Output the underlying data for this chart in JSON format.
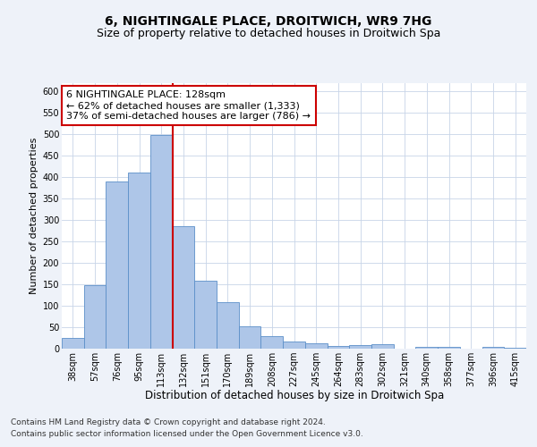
{
  "title": "6, NIGHTINGALE PLACE, DROITWICH, WR9 7HG",
  "subtitle": "Size of property relative to detached houses in Droitwich Spa",
  "xlabel": "Distribution of detached houses by size in Droitwich Spa",
  "ylabel": "Number of detached properties",
  "categories": [
    "38sqm",
    "57sqm",
    "76sqm",
    "95sqm",
    "113sqm",
    "132sqm",
    "151sqm",
    "170sqm",
    "189sqm",
    "208sqm",
    "227sqm",
    "245sqm",
    "264sqm",
    "283sqm",
    "302sqm",
    "321sqm",
    "340sqm",
    "358sqm",
    "377sqm",
    "396sqm",
    "415sqm"
  ],
  "values": [
    25,
    148,
    390,
    410,
    498,
    285,
    158,
    108,
    53,
    30,
    16,
    12,
    6,
    8,
    10,
    0,
    4,
    5,
    0,
    5,
    3
  ],
  "bar_color": "#aec6e8",
  "bar_edge_color": "#5b8fc9",
  "vline_color": "#cc0000",
  "ylim": [
    0,
    620
  ],
  "yticks": [
    0,
    50,
    100,
    150,
    200,
    250,
    300,
    350,
    400,
    450,
    500,
    550,
    600
  ],
  "annotation_text": "6 NIGHTINGALE PLACE: 128sqm\n← 62% of detached houses are smaller (1,333)\n37% of semi-detached houses are larger (786) →",
  "annotation_box_color": "#ffffff",
  "annotation_box_edge": "#cc0000",
  "footer_line1": "Contains HM Land Registry data © Crown copyright and database right 2024.",
  "footer_line2": "Contains public sector information licensed under the Open Government Licence v3.0.",
  "background_color": "#eef2f9",
  "plot_background": "#ffffff",
  "grid_color": "#c8d4e8",
  "title_fontsize": 10,
  "subtitle_fontsize": 9,
  "xlabel_fontsize": 8.5,
  "ylabel_fontsize": 8,
  "tick_fontsize": 7,
  "annotation_fontsize": 8,
  "footer_fontsize": 6.5
}
